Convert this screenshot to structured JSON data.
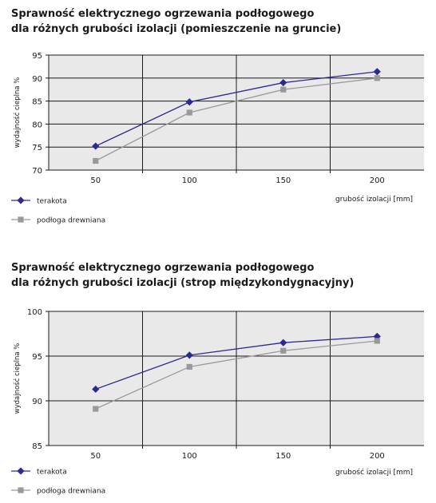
{
  "chart_data": [
    {
      "type": "line",
      "title_lines": [
        "Sprawność elektrycznego ogrzewania podłogowego",
        "dla różnych grubości izolacji (pomieszczenie na gruncie)"
      ],
      "ylabel": "wydajność cieplna %",
      "xlabel": "grubość izolacji  [mm]",
      "categories": [
        "50",
        "100",
        "150",
        "200"
      ],
      "ylim": [
        70,
        95
      ],
      "yticks": [
        70,
        75,
        80,
        85,
        90,
        95
      ],
      "grid": true,
      "legend_position": "bottom-left",
      "series": [
        {
          "name": "terakota",
          "values": [
            75.2,
            84.8,
            89.0,
            91.4
          ],
          "color": "#2b2b8f",
          "marker": "diamond"
        },
        {
          "name": "podłoga drewniana",
          "values": [
            72.0,
            82.5,
            87.5,
            90.0
          ],
          "color": "#999999",
          "marker": "square"
        }
      ]
    },
    {
      "type": "line",
      "title_lines": [
        "Sprawność elektrycznego ogrzewania podłogowego",
        "dla różnych grubości izolacji (strop międzykondygnacyjny)"
      ],
      "ylabel": "wydajność cieplna %",
      "xlabel": "grubość izolacji  [mm]",
      "categories": [
        "50",
        "100",
        "150",
        "200"
      ],
      "ylim": [
        85,
        100
      ],
      "yticks": [
        85,
        90,
        95,
        100
      ],
      "grid": true,
      "legend_position": "bottom-left",
      "series": [
        {
          "name": "terakota",
          "values": [
            91.3,
            95.1,
            96.5,
            97.2
          ],
          "color": "#2b2b8f",
          "marker": "diamond"
        },
        {
          "name": "podłoga drewniana",
          "values": [
            89.1,
            93.8,
            95.6,
            96.7
          ],
          "color": "#999999",
          "marker": "square"
        }
      ]
    }
  ],
  "colors": {
    "plot_background": "#e9e9e9",
    "gridline": "#1a1a1a"
  }
}
